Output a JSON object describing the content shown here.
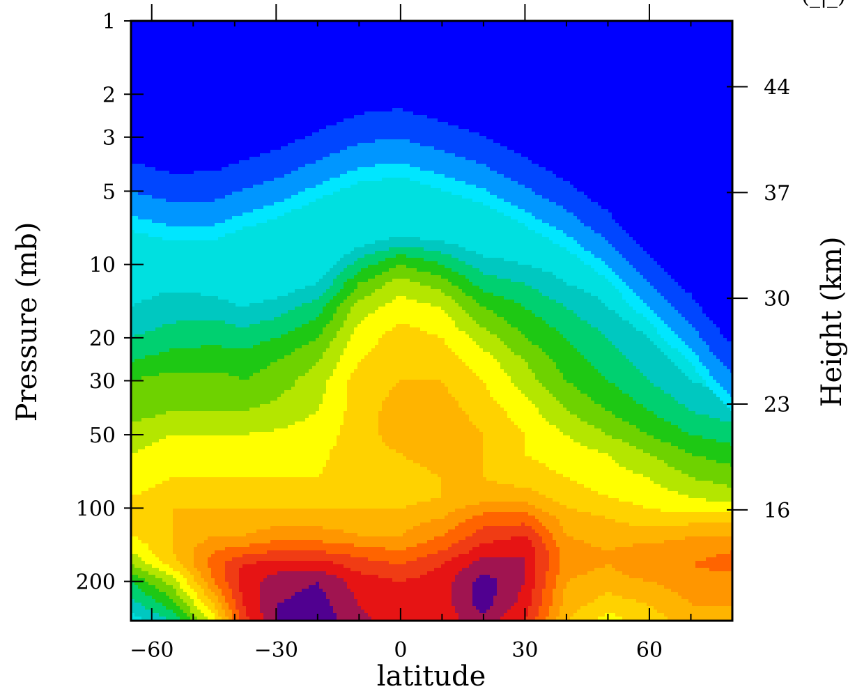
{
  "chart_data": {
    "type": "contour",
    "title": "",
    "corner_label": "(_|_)",
    "xlabel": "latitude",
    "ylabel": "Pressure (mb)",
    "y2label": "Height (km)",
    "xlim": [
      -65,
      80
    ],
    "ylim": [
      290,
      1
    ],
    "yscale": "log",
    "x_ticks": [
      -60,
      -30,
      0,
      30,
      60
    ],
    "x_tick_labels": [
      "−60",
      "−30",
      "0",
      "30",
      "60"
    ],
    "y_ticks": [
      1,
      2,
      3,
      5,
      10,
      20,
      30,
      50,
      100,
      200
    ],
    "y_tick_labels": [
      "1",
      "2",
      "3",
      "5",
      "10",
      "20",
      "30",
      "50",
      "100",
      "200"
    ],
    "y2_ticks_km": [
      44,
      37,
      30,
      23,
      16
    ],
    "y2_tick_labels": [
      "44",
      "37",
      "30",
      "23",
      "16"
    ],
    "colormap": [
      "#00e0e0",
      "#00c8c0",
      "#00d070",
      "#1ec814",
      "#6ed200",
      "#b4e600",
      "#ffff00",
      "#ffd200",
      "#ffb400",
      "#ff9600",
      "#ff6400",
      "#f03c14",
      "#e61414",
      "#a01450",
      "#500090"
    ],
    "upper_region_colors": [
      "#0000ff",
      "#0046ff",
      "#0096ff",
      "#00e6ff",
      "#00e0e0"
    ],
    "field": {
      "lat": [
        -65,
        -55,
        -45,
        -38,
        -30,
        -20,
        -10,
        0,
        10,
        20,
        30,
        40,
        50,
        60,
        70,
        80
      ],
      "boundary_pressure_mb": [
        6.3,
        7.0,
        6.9,
        6.2,
        5.6,
        4.7,
        4.0,
        3.8,
        4.3,
        4.9,
        6.0,
        7.5,
        10.0,
        15.0,
        22.0,
        35.0
      ],
      "levels_mb": [
        290,
        250,
        200,
        170,
        150,
        130,
        110,
        100,
        90,
        75,
        60,
        50,
        40,
        30,
        25,
        20,
        15,
        12,
        10,
        8,
        6.5
      ],
      "values": [
        [
          0.5,
          2.0,
          6.5,
          11.5,
          14.0,
          14.5,
          13.5,
          12.0,
          12.5,
          13.5,
          12.0,
          8.0,
          6.5,
          7.5,
          8.5,
          8.0
        ],
        [
          1.5,
          3.5,
          8.0,
          12.0,
          14.0,
          14.5,
          13.0,
          12.0,
          12.5,
          14.5,
          12.5,
          8.5,
          7.5,
          8.0,
          9.0,
          9.0
        ],
        [
          3.0,
          5.5,
          10.0,
          12.5,
          13.5,
          14.0,
          12.5,
          12.0,
          12.5,
          14.5,
          13.0,
          9.0,
          8.5,
          9.0,
          9.5,
          9.5
        ],
        [
          5.0,
          7.5,
          10.5,
          12.0,
          12.5,
          12.5,
          11.5,
          11.0,
          12.0,
          13.5,
          13.0,
          9.5,
          9.0,
          10.0,
          10.0,
          10.5
        ],
        [
          6.0,
          8.0,
          10.0,
          10.5,
          11.0,
          11.0,
          10.5,
          10.0,
          11.0,
          12.5,
          13.0,
          9.5,
          9.0,
          9.5,
          9.5,
          10.0
        ],
        [
          7.0,
          8.0,
          9.0,
          9.0,
          9.5,
          9.5,
          9.0,
          9.0,
          10.0,
          11.5,
          12.0,
          9.0,
          8.5,
          8.5,
          9.0,
          9.0
        ],
        [
          7.5,
          8.0,
          8.5,
          8.5,
          8.5,
          8.5,
          8.5,
          8.5,
          9.0,
          10.5,
          10.5,
          8.5,
          8.0,
          7.5,
          7.5,
          7.5
        ],
        [
          7.5,
          8.0,
          8.0,
          8.0,
          8.0,
          8.0,
          8.0,
          8.0,
          8.5,
          9.5,
          9.5,
          8.0,
          7.5,
          7.0,
          6.5,
          6.5
        ],
        [
          7.0,
          7.5,
          7.5,
          7.5,
          7.5,
          7.5,
          7.5,
          7.5,
          8.0,
          8.5,
          8.5,
          7.5,
          7.0,
          6.5,
          6.0,
          5.5
        ],
        [
          6.5,
          7.0,
          7.0,
          7.0,
          7.0,
          7.0,
          7.5,
          7.5,
          8.0,
          8.0,
          7.5,
          7.0,
          6.5,
          6.0,
          5.0,
          4.5
        ],
        [
          6.0,
          6.5,
          6.5,
          6.5,
          6.5,
          6.8,
          7.5,
          8.0,
          8.5,
          8.0,
          7.0,
          6.5,
          6.0,
          5.0,
          4.0,
          3.5
        ],
        [
          5.5,
          6.0,
          6.0,
          6.0,
          6.2,
          6.5,
          7.5,
          8.5,
          9.0,
          8.0,
          7.0,
          6.0,
          5.0,
          4.0,
          3.0,
          2.5
        ],
        [
          4.5,
          5.0,
          5.0,
          5.0,
          5.3,
          6.0,
          7.5,
          8.5,
          8.5,
          7.5,
          6.5,
          5.0,
          4.0,
          3.0,
          2.0,
          1.5
        ],
        [
          4.0,
          4.5,
          4.5,
          4.0,
          4.5,
          5.5,
          7.5,
          8.0,
          8.0,
          7.0,
          5.5,
          4.0,
          3.0,
          2.0,
          1.0,
          0.5
        ],
        [
          3.0,
          3.5,
          3.5,
          3.5,
          4.0,
          5.0,
          7.0,
          7.5,
          7.5,
          6.5,
          5.0,
          3.5,
          2.5,
          1.5,
          0.5,
          -0.5
        ],
        [
          2.0,
          2.5,
          2.8,
          2.5,
          3.0,
          4.0,
          6.5,
          7.5,
          7.0,
          5.5,
          4.0,
          3.0,
          2.0,
          1.0,
          0.0,
          -1.0
        ],
        [
          1.0,
          1.5,
          1.5,
          1.0,
          1.5,
          2.5,
          5.5,
          6.5,
          6.0,
          4.0,
          3.0,
          2.0,
          1.0,
          0.0,
          -0.5,
          -1.5
        ],
        [
          0.5,
          0.8,
          0.5,
          0.0,
          0.2,
          1.0,
          4.0,
          5.5,
          4.5,
          2.5,
          2.0,
          1.0,
          0.5,
          -0.5,
          -1.0,
          -2.0
        ],
        [
          0.0,
          0.0,
          -0.5,
          -1.0,
          -0.8,
          0.0,
          2.5,
          4.0,
          3.0,
          1.5,
          1.0,
          0.5,
          0.0,
          -1.0,
          -1.5,
          -2.5
        ],
        [
          -0.5,
          -0.8,
          -1.2,
          -1.8,
          -1.7,
          -1.0,
          0.5,
          1.5,
          1.0,
          0.0,
          0.0,
          -0.5,
          -1.0,
          -1.5,
          -2.0,
          -3.0
        ],
        [
          -1.5,
          -1.8,
          -2.2,
          -2.7,
          -2.7,
          -2.3,
          -1.5,
          -1.0,
          -1.2,
          -1.7,
          -1.8,
          -2.0,
          -2.5,
          -3.0,
          -3.5,
          -4.0
        ]
      ]
    }
  }
}
